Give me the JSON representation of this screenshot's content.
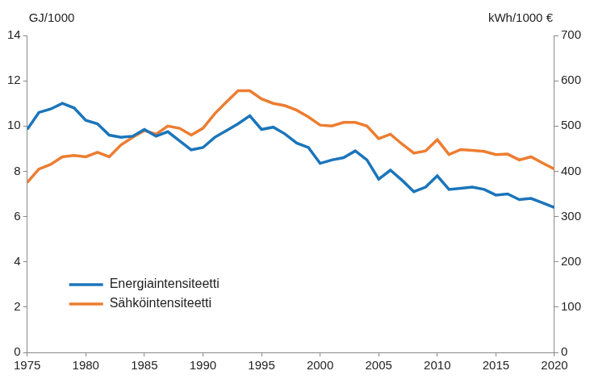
{
  "chart_data": {
    "type": "line",
    "ylabel": "GJ/1000",
    "y2label": "kWh/1000 €",
    "x": [
      1975,
      1976,
      1977,
      1978,
      1979,
      1980,
      1981,
      1982,
      1983,
      1984,
      1985,
      1986,
      1987,
      1988,
      1989,
      1990,
      1991,
      1992,
      1993,
      1994,
      1995,
      1996,
      1997,
      1998,
      1999,
      2000,
      2001,
      2002,
      2003,
      2004,
      2005,
      2006,
      2007,
      2008,
      2009,
      2010,
      2011,
      2012,
      2013,
      2014,
      2015,
      2016,
      2017,
      2018,
      2019,
      2020
    ],
    "series": [
      {
        "name": "Energiaintensiteetti",
        "color": "#1b75bb",
        "axis": "y",
        "values": [
          9.85,
          10.6,
          10.75,
          11.0,
          10.8,
          10.25,
          10.1,
          9.6,
          9.5,
          9.55,
          9.85,
          9.55,
          9.75,
          9.35,
          8.95,
          9.05,
          9.5,
          9.8,
          10.1,
          10.45,
          9.85,
          9.95,
          9.65,
          9.25,
          9.05,
          8.35,
          8.5,
          8.6,
          8.9,
          8.5,
          7.65,
          8.05,
          7.6,
          7.1,
          7.3,
          7.8,
          7.2,
          7.25,
          7.3,
          7.2,
          6.95,
          7.0,
          6.75,
          6.8,
          6.6,
          6.4
        ]
      },
      {
        "name": "Sähköintensiteetti",
        "color": "#ed7d31",
        "axis": "y2",
        "values": [
          375,
          405,
          415,
          432,
          435,
          432,
          442,
          432,
          458,
          475,
          490,
          482,
          500,
          495,
          480,
          495,
          527,
          553,
          578,
          578,
          560,
          550,
          545,
          535,
          520,
          502,
          500,
          508,
          508,
          500,
          472,
          482,
          460,
          440,
          445,
          470,
          437,
          448,
          446,
          444,
          437,
          438,
          425,
          432,
          418,
          405
        ]
      }
    ],
    "xlim": [
      1975,
      2020
    ],
    "xticks": [
      1975,
      1980,
      1985,
      1990,
      1995,
      2000,
      2005,
      2010,
      2015,
      2020
    ],
    "ylim": [
      0,
      14
    ],
    "yticks": [
      0,
      2,
      4,
      6,
      8,
      10,
      12,
      14
    ],
    "y2lim": [
      0,
      700
    ],
    "y2ticks": [
      0,
      100,
      200,
      300,
      400,
      500,
      600,
      700
    ],
    "grid": false,
    "legend": "lower left"
  }
}
